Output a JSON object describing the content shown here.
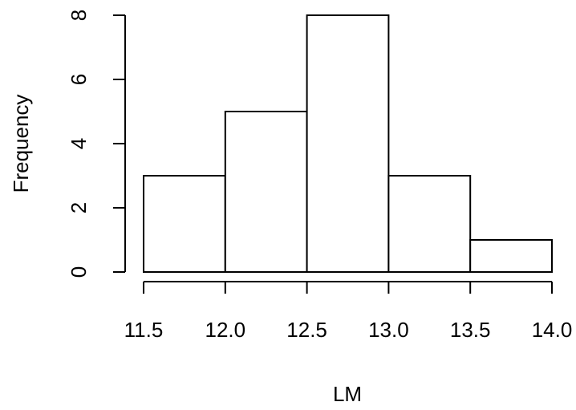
{
  "chart_data": {
    "type": "bar",
    "subtype": "histogram",
    "title": "",
    "xlabel": "LM",
    "ylabel": "Frequency",
    "bins": [
      {
        "start": 11.5,
        "end": 12.0,
        "count": 3
      },
      {
        "start": 12.0,
        "end": 12.5,
        "count": 5
      },
      {
        "start": 12.5,
        "end": 13.0,
        "count": 8
      },
      {
        "start": 13.0,
        "end": 13.5,
        "count": 3
      },
      {
        "start": 13.5,
        "end": 14.0,
        "count": 1
      }
    ],
    "xlim": [
      11.5,
      14.0
    ],
    "ylim": [
      0,
      8
    ],
    "xticks": [
      "11.5",
      "12.0",
      "12.5",
      "13.0",
      "13.5",
      "14.0"
    ],
    "yticks": [
      "0",
      "2",
      "4",
      "6",
      "8"
    ],
    "grid": false,
    "colors": {
      "bar_fill": "#ffffff",
      "bar_stroke": "#000000"
    }
  }
}
